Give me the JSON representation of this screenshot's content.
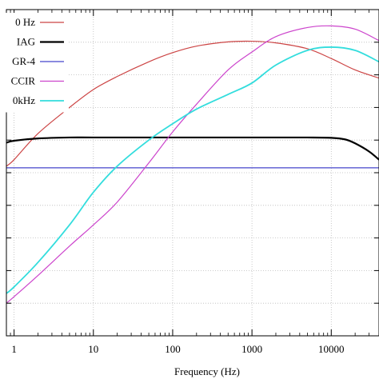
{
  "chart_data": {
    "type": "line",
    "title": "",
    "xlabel": "Frequency (Hz)",
    "ylabel": "",
    "xscale": "log",
    "xlim": [
      0.8,
      40000
    ],
    "ylim": [
      -90,
      10
    ],
    "grid": true,
    "legend_position": "top-left",
    "x_ticks": [
      {
        "value": 1,
        "label": "1"
      },
      {
        "value": 10,
        "label": "10"
      },
      {
        "value": 100,
        "label": "100"
      },
      {
        "value": 1000,
        "label": "1000"
      },
      {
        "value": 10000,
        "label": "10000"
      }
    ],
    "y_gridlines": [
      10,
      0,
      -10,
      -20,
      -30,
      -40,
      -50,
      -60,
      -70,
      -80,
      -90
    ],
    "series": [
      {
        "name": "0 Hz",
        "color": "#cc4444",
        "width": 1.2,
        "x": [
          0.8,
          1,
          2,
          5,
          10,
          20,
          50,
          100,
          200,
          500,
          1000,
          2000,
          5000,
          10000,
          20000,
          40000
        ],
        "y": [
          -38,
          -36,
          -28,
          -20,
          -14.5,
          -10.5,
          -6,
          -3.2,
          -1.2,
          0.1,
          0.3,
          -0.2,
          -2,
          -5,
          -8.5,
          -11
        ]
      },
      {
        "name": "IAG",
        "color": "#000000",
        "width": 2.2,
        "x": [
          0.8,
          1,
          2,
          5,
          10,
          50,
          100,
          1000,
          5000,
          10000,
          15000,
          20000,
          30000,
          40000
        ],
        "y": [
          -30.8,
          -30.2,
          -29.5,
          -29.2,
          -29.2,
          -29.2,
          -29.2,
          -29.2,
          -29.2,
          -29.3,
          -29.8,
          -31,
          -33.5,
          -36
        ]
      },
      {
        "name": "GR-4",
        "color": "#4444cc",
        "width": 1.2,
        "x": [
          0.8,
          40000
        ],
        "y": [
          -38.5,
          -38.5
        ]
      },
      {
        "name": "CCIR",
        "color": "#cc44cc",
        "width": 1.2,
        "x": [
          0.8,
          1,
          2,
          5,
          10,
          20,
          50,
          100,
          200,
          500,
          1000,
          2000,
          5000,
          10000,
          20000,
          40000
        ],
        "y": [
          -80,
          -78,
          -71.5,
          -62.5,
          -56,
          -49,
          -37,
          -27.5,
          -19,
          -8.5,
          -3,
          1.7,
          4.5,
          5,
          4,
          0.5
        ]
      },
      {
        "name": "0kHz",
        "color": "#33dddd",
        "width": 1.8,
        "x": [
          0.8,
          1,
          2,
          5,
          10,
          20,
          50,
          100,
          200,
          500,
          1000,
          2000,
          5000,
          10000,
          20000,
          40000
        ],
        "y": [
          -77,
          -75,
          -67.5,
          -56,
          -46,
          -38,
          -30,
          -25,
          -20.5,
          -16,
          -12.5,
          -7,
          -2.5,
          -1.5,
          -2.5,
          -6
        ]
      }
    ]
  }
}
